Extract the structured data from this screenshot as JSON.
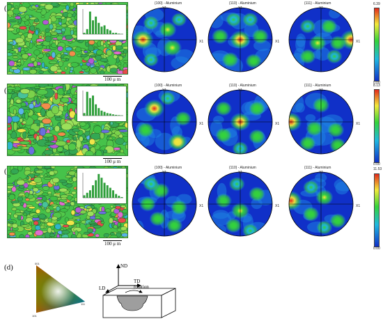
{
  "panel_labels": [
    "(a)",
    "(b)",
    "(c)",
    "(d)"
  ],
  "scale_bar": "100 μ m",
  "pole_figure_titles": [
    "{100} - Aluminium",
    "{110} - Aluminium",
    "{111} - Aluminium"
  ],
  "axes": {
    "y": "Y1",
    "x": "X1"
  },
  "colorbar_max": [
    "6.39",
    "8.13",
    "11.53"
  ],
  "colorbar_min": "0.00",
  "histogram_bins": [
    [
      0.05,
      0.2,
      0.9,
      0.55,
      0.7,
      0.45,
      0.3,
      0.35,
      0.2,
      0.15,
      0.05,
      0.05,
      0.02,
      0.01
    ],
    [
      0.1,
      0.95,
      0.7,
      0.8,
      0.45,
      0.3,
      0.2,
      0.15,
      0.1,
      0.08,
      0.05,
      0.03,
      0.02,
      0.01
    ],
    [
      0.1,
      0.2,
      0.3,
      0.5,
      0.7,
      0.95,
      0.8,
      0.6,
      0.5,
      0.4,
      0.3,
      0.15,
      0.08,
      0.03
    ]
  ],
  "ipf_key": {
    "top": "001",
    "left": "101",
    "right": "111"
  },
  "schematic": {
    "nd": "ND",
    "td": "TD",
    "ld": "LD",
    "rotation": "rotation"
  }
}
